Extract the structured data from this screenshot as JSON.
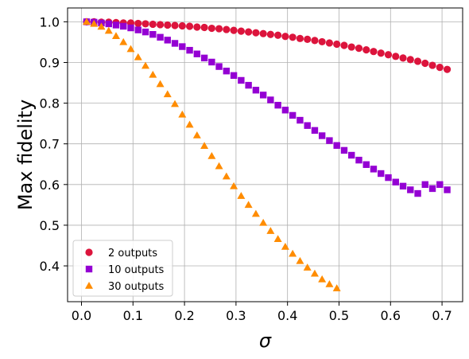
{
  "chart_data": {
    "type": "scatter",
    "title": "",
    "xlabel": "σ",
    "ylabel": "Max fidelity",
    "xlim": [
      -0.027,
      0.74
    ],
    "ylim": [
      0.312,
      1.034
    ],
    "xticks": [
      0.0,
      0.1,
      0.2,
      0.3,
      0.4,
      0.5,
      0.6,
      0.7
    ],
    "xtick_labels": [
      "0.0",
      "0.1",
      "0.2",
      "0.3",
      "0.4",
      "0.5",
      "0.6",
      "0.7"
    ],
    "yticks": [
      0.4,
      0.5,
      0.6,
      0.7,
      0.8,
      0.9,
      1.0
    ],
    "ytick_labels": [
      "0.4",
      "0.5",
      "0.6",
      "0.7",
      "0.8",
      "0.9",
      "1.0"
    ],
    "grid": true,
    "legend_position": "lower-left",
    "x": [
      0.01,
      0.0243,
      0.0386,
      0.0529,
      0.0671,
      0.0814,
      0.0957,
      0.11,
      0.1243,
      0.1386,
      0.1529,
      0.1671,
      0.1814,
      0.1957,
      0.21,
      0.2243,
      0.2386,
      0.2529,
      0.2671,
      0.2814,
      0.2957,
      0.31,
      0.3243,
      0.3386,
      0.3529,
      0.3671,
      0.3814,
      0.3957,
      0.41,
      0.4243,
      0.4386,
      0.4529,
      0.4671,
      0.4814,
      0.4957,
      0.51,
      0.5243,
      0.5386,
      0.5529,
      0.5671,
      0.5814,
      0.5957,
      0.61,
      0.6243,
      0.6386,
      0.6529,
      0.6671,
      0.6814,
      0.6957,
      0.71
    ],
    "series": [
      {
        "name": "2 outputs",
        "marker": "circle",
        "color": "#dc143c",
        "values": [
          1.0,
          1.0,
          0.999,
          0.999,
          0.998,
          0.997,
          0.997,
          0.996,
          0.995,
          0.994,
          0.993,
          0.992,
          0.991,
          0.99,
          0.989,
          0.987,
          0.986,
          0.984,
          0.983,
          0.981,
          0.979,
          0.977,
          0.975,
          0.973,
          0.971,
          0.969,
          0.967,
          0.964,
          0.962,
          0.959,
          0.957,
          0.954,
          0.951,
          0.948,
          0.945,
          0.942,
          0.938,
          0.935,
          0.931,
          0.927,
          0.923,
          0.919,
          0.915,
          0.911,
          0.907,
          0.903,
          0.898,
          0.893,
          0.888,
          0.883
        ]
      },
      {
        "name": "10 outputs",
        "marker": "square",
        "color": "#9400d3",
        "values": [
          1.0,
          0.999,
          0.997,
          0.995,
          0.992,
          0.989,
          0.985,
          0.98,
          0.975,
          0.969,
          0.962,
          0.955,
          0.947,
          0.939,
          0.93,
          0.921,
          0.911,
          0.901,
          0.89,
          0.879,
          0.868,
          0.856,
          0.844,
          0.832,
          0.82,
          0.808,
          0.795,
          0.783,
          0.77,
          0.758,
          0.745,
          0.733,
          0.72,
          0.708,
          0.696,
          0.684,
          0.672,
          0.66,
          0.649,
          0.638,
          0.627,
          0.617,
          0.606,
          0.596,
          0.587,
          0.578,
          0.6,
          0.59,
          0.6,
          0.587
        ]
      },
      {
        "name": "30 outputs",
        "marker": "triangle",
        "color": "#ff8c00",
        "values": [
          1.0,
          0.995,
          0.988,
          0.978,
          0.965,
          0.95,
          0.933,
          0.913,
          0.892,
          0.87,
          0.847,
          0.822,
          0.798,
          0.772,
          0.747,
          0.721,
          0.695,
          0.67,
          0.645,
          0.62,
          0.596,
          0.572,
          0.55,
          0.528,
          0.506,
          0.486,
          0.466,
          0.447,
          0.43,
          0.412,
          0.396,
          0.381,
          0.367,
          0.355,
          0.345
        ]
      }
    ]
  }
}
